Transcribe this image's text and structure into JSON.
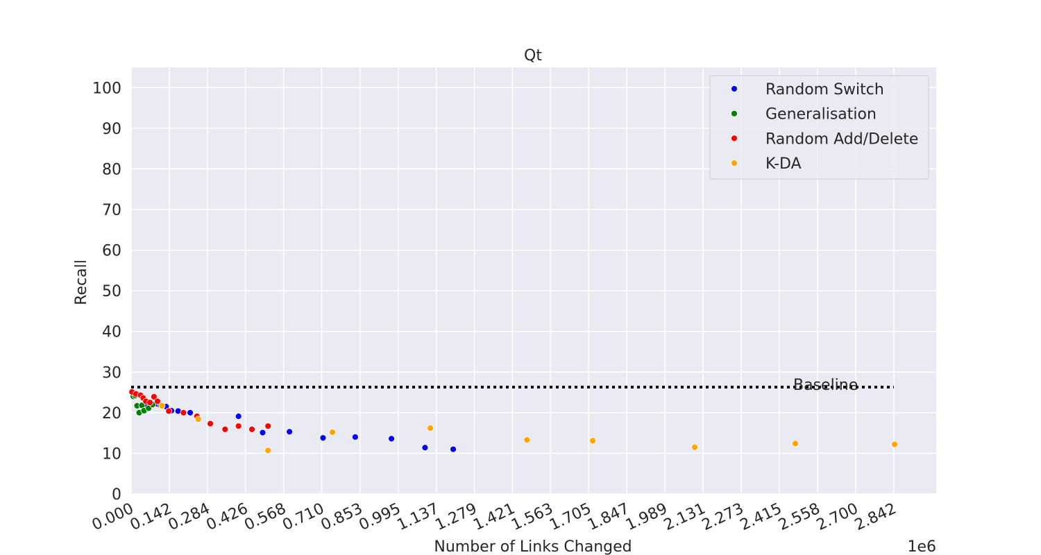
{
  "chart_data": {
    "type": "scatter",
    "title": "Qt",
    "xlabel": "Number of Links Changed",
    "ylabel": "Recall",
    "x_offset_label": "1e6",
    "xlim": [
      0,
      3.0
    ],
    "ylim": [
      0,
      105
    ],
    "x_ticks": [
      0,
      0.142,
      0.284,
      0.426,
      0.568,
      0.71,
      0.853,
      0.995,
      1.137,
      1.279,
      1.421,
      1.563,
      1.705,
      1.847,
      1.989,
      2.131,
      2.273,
      2.415,
      2.558,
      2.7,
      2.842
    ],
    "x_tick_labels": [
      "0.000",
      "0.142",
      "0.284",
      "0.426",
      "0.568",
      "0.710",
      "0.853",
      "0.995",
      "1.137",
      "1.279",
      "1.421",
      "1.563",
      "1.705",
      "1.847",
      "1.989",
      "2.131",
      "2.273",
      "2.415",
      "2.558",
      "2.700",
      "2.842"
    ],
    "y_ticks": [
      0,
      10,
      20,
      30,
      40,
      50,
      60,
      70,
      80,
      90,
      100
    ],
    "y_tick_labels": [
      "0",
      "10",
      "20",
      "30",
      "40",
      "50",
      "60",
      "70",
      "80",
      "90",
      "100"
    ],
    "grid": true,
    "legend_position": "top-right",
    "baseline": {
      "label": "Baseline",
      "y": 26.3,
      "x_start": 0,
      "x_end": 2.842
    },
    "series": [
      {
        "name": "Random Switch",
        "color": "#0000ff",
        "points": [
          [
            0.055,
            22
          ],
          [
            0.08,
            21.9
          ],
          [
            0.1,
            22.1
          ],
          [
            0.13,
            21.5
          ],
          [
            0.15,
            20.5
          ],
          [
            0.175,
            20.4
          ],
          [
            0.22,
            20.0
          ],
          [
            0.4,
            19.1
          ],
          [
            0.49,
            15.1
          ],
          [
            0.59,
            15.3
          ],
          [
            0.715,
            13.8
          ],
          [
            0.835,
            14.0
          ],
          [
            0.97,
            13.6
          ],
          [
            1.095,
            11.4
          ],
          [
            1.2,
            11.0
          ]
        ]
      },
      {
        "name": "Generalisation",
        "color": "#008000",
        "points": [
          [
            0.008,
            24.0
          ],
          [
            0.015,
            24.2
          ],
          [
            0.022,
            21.7
          ],
          [
            0.03,
            20.0
          ],
          [
            0.04,
            21.8
          ],
          [
            0.048,
            20.5
          ],
          [
            0.065,
            21.1
          ],
          [
            0.08,
            22.0
          ],
          [
            0.11,
            21.8
          ]
        ]
      },
      {
        "name": "Random Add/Delete",
        "color": "#ff0000",
        "points": [
          [
            0.003,
            25.1
          ],
          [
            0.018,
            24.6
          ],
          [
            0.035,
            24.3
          ],
          [
            0.045,
            23.6
          ],
          [
            0.055,
            22.8
          ],
          [
            0.07,
            22.5
          ],
          [
            0.085,
            23.9
          ],
          [
            0.098,
            22.8
          ],
          [
            0.14,
            20.4
          ],
          [
            0.195,
            20.0
          ],
          [
            0.245,
            19.1
          ],
          [
            0.295,
            17.3
          ],
          [
            0.35,
            15.9
          ],
          [
            0.4,
            16.7
          ],
          [
            0.45,
            15.9
          ],
          [
            0.51,
            16.7
          ]
        ]
      },
      {
        "name": "K-DA",
        "color": "#ffa500",
        "points": [
          [
            0.115,
            21.7
          ],
          [
            0.25,
            18.4
          ],
          [
            0.51,
            10.7
          ],
          [
            0.75,
            15.2
          ],
          [
            1.115,
            16.2
          ],
          [
            1.475,
            13.3
          ],
          [
            1.72,
            13.1
          ],
          [
            2.1,
            11.5
          ],
          [
            2.475,
            12.4
          ],
          [
            2.845,
            12.2
          ]
        ]
      }
    ]
  }
}
